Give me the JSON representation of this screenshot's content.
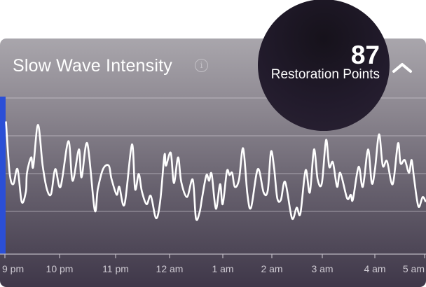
{
  "header": {
    "title": "Slow Wave Intensity",
    "info_icon": "info-circle-icon",
    "score": "87",
    "score_label": "Restoration Points",
    "collapse_icon": "chevron-up-icon"
  },
  "colors": {
    "accent_bar": "#2b4fd6",
    "line": "#ffffff",
    "circle": "#221b2c"
  },
  "chart_data": {
    "type": "line",
    "title": "Slow Wave Intensity",
    "xlabel": "",
    "ylabel": "",
    "x_unit": "hours since 9 pm",
    "xlim": [
      0,
      8
    ],
    "ylim": [
      0,
      4
    ],
    "gridlines_y": [
      1,
      2,
      3,
      4
    ],
    "grid": true,
    "tick_labels": [
      "9 pm",
      "10 pm",
      "11 pm",
      "12 am",
      "1 am",
      "2 am",
      "3 am",
      "4 am",
      "5 am"
    ],
    "series": [
      {
        "name": "Slow Wave Intensity",
        "points": [
          [
            0.02,
            3.38
          ],
          [
            0.09,
            2.02
          ],
          [
            0.16,
            1.72
          ],
          [
            0.24,
            2.12
          ],
          [
            0.32,
            1.25
          ],
          [
            0.4,
            1.53
          ],
          [
            0.42,
            2.02
          ],
          [
            0.5,
            2.43
          ],
          [
            0.54,
            2.18
          ],
          [
            0.63,
            3.29
          ],
          [
            0.72,
            2.21
          ],
          [
            0.8,
            1.59
          ],
          [
            0.88,
            1.46
          ],
          [
            0.96,
            2.12
          ],
          [
            1.06,
            1.65
          ],
          [
            1.21,
            2.86
          ],
          [
            1.29,
            1.81
          ],
          [
            1.41,
            2.64
          ],
          [
            1.46,
            1.9
          ],
          [
            1.57,
            2.8
          ],
          [
            1.71,
            1.04
          ],
          [
            1.77,
            1.59
          ],
          [
            1.87,
            2.12
          ],
          [
            1.98,
            2.21
          ],
          [
            2.03,
            1.87
          ],
          [
            2.13,
            1.44
          ],
          [
            2.18,
            1.65
          ],
          [
            2.28,
            1.19
          ],
          [
            2.42,
            2.77
          ],
          [
            2.48,
            1.59
          ],
          [
            2.55,
            1.99
          ],
          [
            2.61,
            1.53
          ],
          [
            2.7,
            1.19
          ],
          [
            2.78,
            1.41
          ],
          [
            2.88,
            0.82
          ],
          [
            2.96,
            1.28
          ],
          [
            3.04,
            2.49
          ],
          [
            3.07,
            2.21
          ],
          [
            3.16,
            2.55
          ],
          [
            3.22,
            1.75
          ],
          [
            3.3,
            2.43
          ],
          [
            3.36,
            1.78
          ],
          [
            3.47,
            1.38
          ],
          [
            3.58,
            1.84
          ],
          [
            3.64,
            0.82
          ],
          [
            3.71,
            0.98
          ],
          [
            3.76,
            1.38
          ],
          [
            3.84,
            1.96
          ],
          [
            3.89,
            1.81
          ],
          [
            3.94,
            1.99
          ],
          [
            4.02,
            1.07
          ],
          [
            4.1,
            1.72
          ],
          [
            4.15,
            1.19
          ],
          [
            4.23,
            2.06
          ],
          [
            4.28,
            1.96
          ],
          [
            4.33,
            2.02
          ],
          [
            4.38,
            1.65
          ],
          [
            4.46,
            1.84
          ],
          [
            4.54,
            2.67
          ],
          [
            4.62,
            1.47
          ],
          [
            4.69,
            1.1
          ],
          [
            4.82,
            2.12
          ],
          [
            4.93,
            1.5
          ],
          [
            5.01,
            1.56
          ],
          [
            5.07,
            2.58
          ],
          [
            5.13,
            2.15
          ],
          [
            5.19,
            1.35
          ],
          [
            5.26,
            1.31
          ],
          [
            5.34,
            1.78
          ],
          [
            5.47,
            0.82
          ],
          [
            5.56,
            1.1
          ],
          [
            5.63,
            0.94
          ],
          [
            5.73,
            2.09
          ],
          [
            5.81,
            1.5
          ],
          [
            5.89,
            2.64
          ],
          [
            5.96,
            1.84
          ],
          [
            6.04,
            1.75
          ],
          [
            6.12,
            2.89
          ],
          [
            6.18,
            2.18
          ],
          [
            6.25,
            2.3
          ],
          [
            6.33,
            1.65
          ],
          [
            6.39,
            2.02
          ],
          [
            6.52,
            1.35
          ],
          [
            6.59,
            1.44
          ],
          [
            6.63,
            1.31
          ],
          [
            6.74,
            2.18
          ],
          [
            6.82,
            1.65
          ],
          [
            6.92,
            2.64
          ],
          [
            6.99,
            1.75
          ],
          [
            7.05,
            2.09
          ],
          [
            7.13,
            3.04
          ],
          [
            7.2,
            2.21
          ],
          [
            7.28,
            2.33
          ],
          [
            7.39,
            1.72
          ],
          [
            7.49,
            2.8
          ],
          [
            7.54,
            2.27
          ],
          [
            7.62,
            2.36
          ],
          [
            7.7,
            2.02
          ],
          [
            7.75,
            2.36
          ],
          [
            7.8,
            1.84
          ],
          [
            7.88,
            1.13
          ],
          [
            7.96,
            1.38
          ],
          [
            8.02,
            1.25
          ]
        ]
      }
    ]
  }
}
